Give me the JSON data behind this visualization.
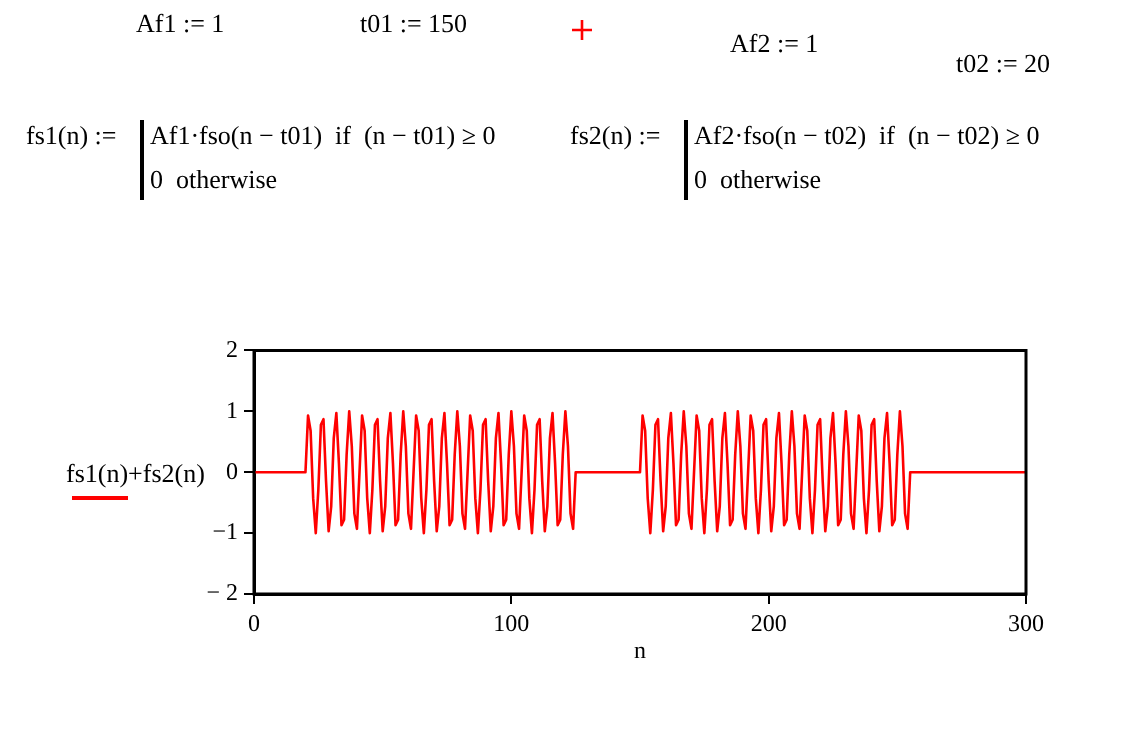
{
  "chart_data": {
    "type": "line",
    "xlabel": "n",
    "ylabel": "fs1(n)+fs2(n)",
    "annotations": [
      "Af1 := 1",
      "t01 := 150",
      "Af2 := 1",
      "t02 := 20",
      "fs1(n) :=",
      "Af1·fso(n − t01)  if  (n − t01) ≥ 0",
      "0  otherwise",
      "fs2(n) :=",
      "Af2·fso(n − t02)  if  (n − t02) ≥ 0",
      "0  otherwise"
    ],
    "x": [
      0,
      19,
      20,
      21,
      22,
      23,
      24,
      25,
      26,
      27,
      28,
      29,
      30,
      31,
      32,
      33,
      34,
      35,
      36,
      37,
      38,
      39,
      40,
      41,
      42,
      43,
      44,
      45,
      46,
      47,
      48,
      49,
      50,
      51,
      52,
      53,
      54,
      55,
      56,
      57,
      58,
      59,
      60,
      61,
      62,
      63,
      64,
      65,
      66,
      67,
      68,
      69,
      70,
      71,
      72,
      73,
      74,
      75,
      76,
      77,
      78,
      79,
      80,
      81,
      82,
      83,
      84,
      85,
      86,
      87,
      88,
      89,
      90,
      91,
      92,
      93,
      94,
      95,
      96,
      97,
      98,
      99,
      100,
      101,
      102,
      103,
      104,
      105,
      106,
      107,
      108,
      109,
      110,
      111,
      112,
      113,
      114,
      115,
      116,
      117,
      118,
      119,
      120,
      121,
      122,
      123,
      124,
      125,
      149,
      150,
      151,
      152,
      153,
      154,
      155,
      156,
      157,
      158,
      159,
      160,
      161,
      162,
      163,
      164,
      165,
      166,
      167,
      168,
      169,
      170,
      171,
      172,
      173,
      174,
      175,
      176,
      177,
      178,
      179,
      180,
      181,
      182,
      183,
      184,
      185,
      186,
      187,
      188,
      189,
      190,
      191,
      192,
      193,
      194,
      195,
      196,
      197,
      198,
      199,
      200,
      201,
      202,
      203,
      204,
      205,
      206,
      207,
      208,
      209,
      210,
      211,
      212,
      213,
      214,
      215,
      216,
      217,
      218,
      219,
      220,
      221,
      222,
      223,
      224,
      225,
      226,
      227,
      228,
      229,
      230,
      231,
      232,
      233,
      234,
      235,
      236,
      237,
      238,
      239,
      240,
      241,
      242,
      243,
      244,
      245,
      246,
      247,
      248,
      249,
      250,
      251,
      252,
      253,
      254,
      255,
      300
    ],
    "series": [
      {
        "color": "#ff0000",
        "values": [
          0,
          0,
          0,
          0.93,
          0.68,
          -0.43,
          -1,
          -0.29,
          0.78,
          0.87,
          -0.15,
          -0.97,
          -0.56,
          0.56,
          0.97,
          0.15,
          -0.87,
          -0.78,
          0.29,
          1,
          0.43,
          -0.68,
          -0.93,
          0,
          0.93,
          0.68,
          -0.43,
          -1,
          -0.29,
          0.78,
          0.87,
          -0.15,
          -0.97,
          -0.56,
          0.56,
          0.97,
          0.15,
          -0.87,
          -0.78,
          0.29,
          1,
          0.43,
          -0.68,
          -0.93,
          0,
          0.93,
          0.68,
          -0.43,
          -1,
          -0.29,
          0.78,
          0.87,
          -0.15,
          -0.97,
          -0.56,
          0.56,
          0.97,
          0.15,
          -0.87,
          -0.78,
          0.29,
          1,
          0.43,
          -0.68,
          -0.93,
          0,
          0.93,
          0.68,
          -0.43,
          -1,
          -0.29,
          0.78,
          0.87,
          -0.15,
          -0.97,
          -0.56,
          0.56,
          0.97,
          0.15,
          -0.87,
          -0.78,
          0.29,
          1,
          0.43,
          -0.68,
          -0.93,
          0,
          0.93,
          0.68,
          -0.43,
          -1,
          -0.29,
          0.78,
          0.87,
          -0.15,
          -0.97,
          -0.56,
          0.56,
          0.97,
          0.15,
          -0.87,
          -0.78,
          0.29,
          1,
          0.43,
          -0.68,
          -0.93,
          0,
          0,
          0,
          0.93,
          0.68,
          -0.43,
          -1,
          -0.29,
          0.78,
          0.87,
          -0.15,
          -0.97,
          -0.56,
          0.56,
          0.97,
          0.15,
          -0.87,
          -0.78,
          0.29,
          1,
          0.43,
          -0.68,
          -0.93,
          0,
          0.93,
          0.68,
          -0.43,
          -1,
          -0.29,
          0.78,
          0.87,
          -0.15,
          -0.97,
          -0.56,
          0.56,
          0.97,
          0.15,
          -0.87,
          -0.78,
          0.29,
          1,
          0.43,
          -0.68,
          -0.93,
          0,
          0.93,
          0.68,
          -0.43,
          -1,
          -0.29,
          0.78,
          0.87,
          -0.15,
          -0.97,
          -0.56,
          0.56,
          0.97,
          0.15,
          -0.87,
          -0.78,
          0.29,
          1,
          0.43,
          -0.68,
          -0.93,
          0,
          0.93,
          0.68,
          -0.43,
          -1,
          -0.29,
          0.78,
          0.87,
          -0.15,
          -0.97,
          -0.56,
          0.56,
          0.97,
          0.15,
          -0.87,
          -0.78,
          0.29,
          1,
          0.43,
          -0.68,
          -0.93,
          0,
          0.93,
          0.68,
          -0.43,
          -1,
          -0.29,
          0.78,
          0.87,
          -0.15,
          -0.97,
          -0.56,
          0.56,
          0.97,
          0.15,
          -0.87,
          -0.78,
          0.29,
          1,
          0.43,
          -0.68,
          -0.93,
          0,
          0
        ]
      }
    ],
    "xlim": [
      0,
      300
    ],
    "xticks": [
      0,
      100,
      200,
      300
    ],
    "ylim": [
      -2,
      2
    ],
    "yticks": [
      {
        "value": -2,
        "label": "− 2"
      },
      {
        "value": -1,
        "label": "−1"
      },
      0,
      1,
      2
    ],
    "grid": false,
    "legend": false,
    "marker": "none",
    "line_style": "solid"
  }
}
